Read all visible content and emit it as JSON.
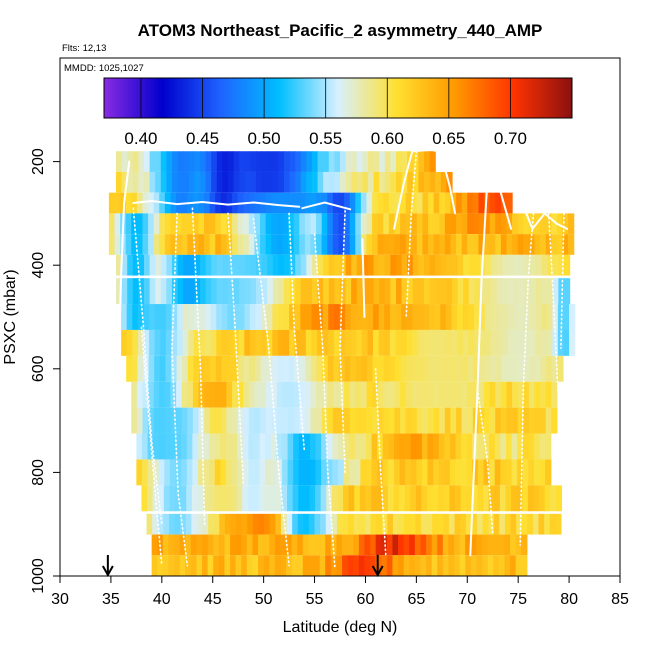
{
  "chart_data": {
    "type": "heatmap",
    "title": "ATOM3 Northeast_Pacific_2 asymmetry_440_AMP",
    "flights_label": "Flts: 12,13",
    "mmdd_label": "MMDD: 1025,1027",
    "xlabel": "Latitude (deg N)",
    "ylabel": "PSXC (mbar)",
    "xlim": [
      30,
      85
    ],
    "ylim": [
      1000,
      0
    ],
    "x_ticks": [
      30,
      35,
      40,
      45,
      50,
      55,
      60,
      65,
      70,
      75,
      80,
      85
    ],
    "y_ticks": [
      200,
      400,
      600,
      800,
      1000
    ],
    "colorbar": {
      "range": [
        0.37,
        0.75
      ],
      "tick_values": [
        0.4,
        0.45,
        0.5,
        0.55,
        0.6,
        0.65,
        0.7
      ],
      "tick_labels": [
        "0.40",
        "0.45",
        "0.50",
        "0.55",
        "0.60",
        "0.65",
        "0.70"
      ],
      "colors": [
        "#8a2be2",
        "#0000cd",
        "#1e64ff",
        "#00bfff",
        "#d8f0ff",
        "#ffe030",
        "#ff9900",
        "#ff3300",
        "#8b1010"
      ]
    },
    "arrows_latitude": [
      34.7,
      61.2
    ],
    "layers": [
      {
        "p": 200,
        "dp": 40,
        "x0": 35.5,
        "x1": 66.5,
        "base": 0.58,
        "extras": [
          [
            68.0,
            0.645
          ],
          [
            69.0,
            0.62
          ]
        ]
      },
      {
        "p": 240,
        "dp": 40,
        "x0": 35.5,
        "x1": 68.0,
        "base": 0.6,
        "extras": [
          [
            68.0,
            0.64
          ],
          [
            70.5,
            0.62
          ]
        ]
      },
      {
        "p": 280,
        "dp": 40,
        "x0": 34.8,
        "x1": 74.0,
        "base": 0.61,
        "extras": [
          [
            72.5,
            0.69
          ]
        ]
      },
      {
        "p": 320,
        "dp": 40,
        "x0": 34.8,
        "x1": 80.0,
        "base": 0.62,
        "extras": [
          [
            71.0,
            0.655
          ]
        ]
      },
      {
        "p": 360,
        "dp": 40,
        "x0": 34.8,
        "x1": 80.0,
        "base": 0.635,
        "extras": [
          [
            53.5,
            0.61
          ]
        ]
      },
      {
        "p": 400,
        "dp": 40,
        "x0": 35.5,
        "x1": 80.0,
        "base": 0.645,
        "extras": [
          [
            48.5,
            0.6
          ]
        ]
      },
      {
        "p": 450,
        "dp": 50,
        "x0": 35.5,
        "x1": 80.0,
        "base": 0.635,
        "extras": [
          [
            49.0,
            0.6
          ]
        ]
      },
      {
        "p": 500,
        "dp": 50,
        "x0": 36.0,
        "x1": 80.0,
        "base": 0.64,
        "extras": [
          [
            56.0,
            0.66
          ]
        ]
      },
      {
        "p": 550,
        "dp": 50,
        "x0": 36.0,
        "x1": 80.0,
        "base": 0.625,
        "extras": [
          [
            44.0,
            0.6
          ]
        ]
      },
      {
        "p": 600,
        "dp": 50,
        "x0": 36.5,
        "x1": 79.0,
        "base": 0.62,
        "extras": [
          [
            55.5,
            0.67
          ]
        ]
      },
      {
        "p": 650,
        "dp": 50,
        "x0": 37.0,
        "x1": 78.5,
        "base": 0.605,
        "extras": [
          [
            45.0,
            0.64
          ]
        ]
      },
      {
        "p": 700,
        "dp": 50,
        "x0": 37.0,
        "x1": 78.5,
        "base": 0.61,
        "extras": [
          [
            57.0,
            0.64
          ]
        ]
      },
      {
        "p": 750,
        "dp": 50,
        "x0": 37.5,
        "x1": 78.0,
        "base": 0.6,
        "extras": [
          [
            65.0,
            0.65
          ]
        ]
      },
      {
        "p": 800,
        "dp": 50,
        "x0": 37.5,
        "x1": 78.0,
        "base": 0.62,
        "extras": [
          [
            56.0,
            0.57
          ]
        ]
      },
      {
        "p": 850,
        "dp": 50,
        "x0": 38.0,
        "x1": 79.0,
        "base": 0.615,
        "extras": [
          [
            58.0,
            0.63
          ]
        ]
      },
      {
        "p": 900,
        "dp": 40,
        "x0": 38.5,
        "x1": 79.0,
        "base": 0.61,
        "extras": [
          [
            51.0,
            0.71
          ]
        ]
      },
      {
        "p": 940,
        "dp": 40,
        "x0": 39.0,
        "x1": 75.5,
        "base": 0.64,
        "extras": [
          [
            63.0,
            0.715
          ]
        ]
      },
      {
        "p": 980,
        "dp": 40,
        "x0": 39.0,
        "x1": 75.5,
        "base": 0.63,
        "extras": [
          [
            60.0,
            0.69
          ]
        ]
      }
    ],
    "anomalies": [
      {
        "lat": 50.5,
        "p": 240,
        "value": 0.43,
        "w": 8.0,
        "h": 90
      },
      {
        "lat": 46.0,
        "p": 240,
        "value": 0.42,
        "w": 3.0,
        "h": 60
      },
      {
        "lat": 42.0,
        "p": 240,
        "value": 0.47,
        "w": 4.0,
        "h": 40
      },
      {
        "lat": 51.5,
        "p": 330,
        "value": 0.49,
        "w": 5.0,
        "h": 100
      },
      {
        "lat": 57.5,
        "p": 325,
        "value": 0.44,
        "w": 3.0,
        "h": 70
      },
      {
        "lat": 43.0,
        "p": 430,
        "value": 0.46,
        "w": 4.0,
        "h": 80
      },
      {
        "lat": 37.5,
        "p": 420,
        "value": 0.5,
        "w": 3.0,
        "h": 200
      },
      {
        "lat": 47.0,
        "p": 460,
        "value": 0.53,
        "w": 7.0,
        "h": 120
      },
      {
        "lat": 40.0,
        "p": 620,
        "value": 0.52,
        "w": 3.5,
        "h": 260
      },
      {
        "lat": 52.5,
        "p": 640,
        "value": 0.55,
        "w": 6.0,
        "h": 120
      },
      {
        "lat": 41.5,
        "p": 800,
        "value": 0.53,
        "w": 4.0,
        "h": 220
      },
      {
        "lat": 54.0,
        "p": 830,
        "value": 0.5,
        "w": 4.0,
        "h": 110
      },
      {
        "lat": 49.0,
        "p": 780,
        "value": 0.55,
        "w": 3.0,
        "h": 120
      },
      {
        "lat": 75.0,
        "p": 500,
        "value": 0.57,
        "w": 8.0,
        "h": 200
      },
      {
        "lat": 67.0,
        "p": 620,
        "value": 0.59,
        "w": 6.0,
        "h": 100
      },
      {
        "lat": 79.5,
        "p": 480,
        "value": 0.52,
        "w": 1.5,
        "h": 90
      }
    ],
    "flight_tracks": [
      {
        "solid": true,
        "points": [
          [
            35.8,
            1000
          ],
          [
            35.6,
            700
          ],
          [
            36.0,
            420
          ],
          [
            36.3,
            280
          ],
          [
            36.8,
            200
          ]
        ]
      },
      {
        "solid": true,
        "points": [
          [
            37.2,
            280
          ],
          [
            39.0,
            276
          ],
          [
            41.5,
            282
          ],
          [
            44.0,
            278
          ],
          [
            46.5,
            283
          ],
          [
            49.0,
            279
          ],
          [
            51.5,
            284
          ],
          [
            53.5,
            287
          ]
        ]
      },
      {
        "solid": true,
        "points": [
          [
            53.8,
            290
          ],
          [
            56.0,
            279
          ],
          [
            58.5,
            292
          ]
        ]
      },
      {
        "solid": true,
        "points": [
          [
            62.8,
            330
          ],
          [
            63.8,
            240
          ],
          [
            64.6,
            180
          ]
        ]
      },
      {
        "solid": true,
        "points": [
          [
            64.6,
            180
          ],
          [
            66.5,
            177
          ],
          [
            67.4,
            182
          ]
        ]
      },
      {
        "solid": true,
        "points": [
          [
            67.4,
            182
          ],
          [
            68.3,
            250
          ],
          [
            68.8,
            300
          ]
        ]
      },
      {
        "solid": true,
        "points": [
          [
            72.0,
            230
          ],
          [
            71.4,
            430
          ],
          [
            71.0,
            640
          ],
          [
            70.6,
            820
          ],
          [
            70.3,
            960
          ]
        ]
      },
      {
        "solid": true,
        "points": [
          [
            72.0,
            230
          ],
          [
            73.0,
            240
          ],
          [
            74.3,
            330
          ]
        ]
      },
      {
        "solid": true,
        "points": [
          [
            59.7,
            350
          ],
          [
            59.9,
            500
          ]
        ]
      },
      {
        "solid": true,
        "points": [
          [
            75.8,
            300
          ],
          [
            76.4,
            330
          ]
        ]
      },
      {
        "solid": true,
        "points": [
          [
            76.4,
            330
          ],
          [
            77.6,
            300
          ],
          [
            78.8,
            320
          ],
          [
            79.8,
            330
          ]
        ]
      },
      {
        "solid": false,
        "points": [
          [
            37.2,
            290
          ],
          [
            38.2,
            520
          ],
          [
            39.0,
            740
          ],
          [
            40.0,
            900
          ]
        ]
      },
      {
        "solid": false,
        "points": [
          [
            38.0,
            520
          ],
          [
            39.0,
            760
          ],
          [
            40.0,
            980
          ]
        ]
      },
      {
        "solid": false,
        "points": [
          [
            41.5,
            300
          ],
          [
            41.0,
            560
          ],
          [
            41.6,
            840
          ],
          [
            42.5,
            980
          ]
        ]
      },
      {
        "solid": false,
        "points": [
          [
            43.0,
            290
          ],
          [
            43.8,
            600
          ],
          [
            44.2,
            900
          ]
        ]
      },
      {
        "solid": false,
        "points": [
          [
            46.5,
            300
          ],
          [
            47.2,
            520
          ],
          [
            48.0,
            820
          ]
        ]
      },
      {
        "solid": false,
        "points": [
          [
            49.0,
            310
          ],
          [
            50.5,
            560
          ],
          [
            51.5,
            800
          ],
          [
            52.5,
            980
          ]
        ]
      },
      {
        "solid": false,
        "points": [
          [
            52.5,
            300
          ],
          [
            53.0,
            520
          ],
          [
            54.0,
            760
          ]
        ]
      },
      {
        "solid": false,
        "points": [
          [
            55.0,
            340
          ],
          [
            55.8,
            560
          ],
          [
            56.3,
            800
          ],
          [
            57.0,
            985
          ]
        ]
      },
      {
        "solid": false,
        "points": [
          [
            58.0,
            295
          ],
          [
            57.5,
            560
          ],
          [
            58.0,
            800
          ]
        ]
      },
      {
        "solid": false,
        "points": [
          [
            61.0,
            600
          ],
          [
            61.5,
            800
          ],
          [
            62.0,
            960
          ]
        ]
      },
      {
        "solid": false,
        "points": [
          [
            65.0,
            180
          ],
          [
            64.5,
            300
          ],
          [
            64.0,
            500
          ]
        ]
      },
      {
        "solid": false,
        "points": [
          [
            71.0,
            640
          ],
          [
            72.0,
            780
          ],
          [
            72.5,
            920
          ]
        ]
      },
      {
        "solid": false,
        "points": [
          [
            76.5,
            300
          ],
          [
            76.0,
            420
          ],
          [
            75.5,
            640
          ],
          [
            75.2,
            940
          ]
        ]
      },
      {
        "solid": false,
        "points": [
          [
            78.0,
            300
          ],
          [
            78.5,
            480
          ],
          [
            79.0,
            680
          ]
        ]
      },
      {
        "solid": false,
        "points": [
          [
            79.5,
            300
          ],
          [
            79.2,
            560
          ]
        ]
      }
    ]
  }
}
